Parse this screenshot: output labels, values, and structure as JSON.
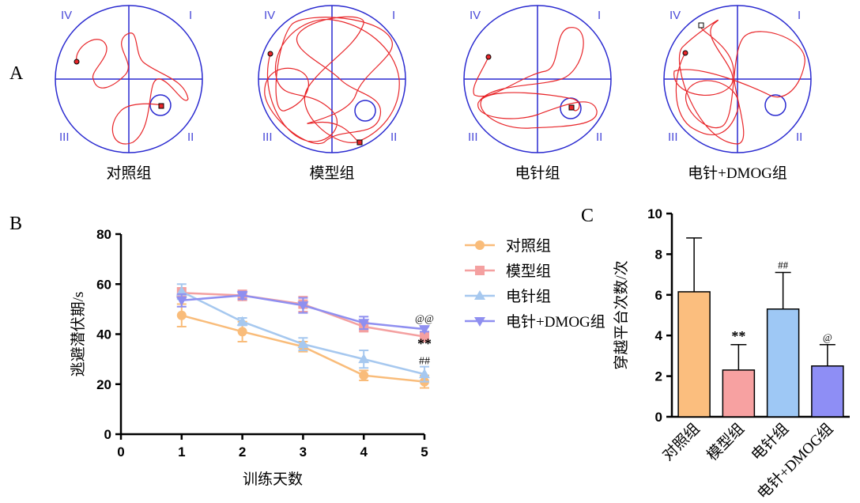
{
  "panel_labels": [
    "A",
    "B",
    "C"
  ],
  "panel_a": {
    "groups": [
      "对照组",
      "模型组",
      "电针组",
      "电针+DMOG组"
    ],
    "quadrants": [
      "I",
      "II",
      "III",
      "IV"
    ]
  },
  "chart_data": [
    {
      "type": "line",
      "x_label": "训练天数",
      "y_label": "逃避潜伏期/s",
      "x": [
        1,
        2,
        3,
        4,
        5
      ],
      "xlim": [
        0,
        5
      ],
      "xticks": [
        0,
        1,
        2,
        3,
        4,
        5
      ],
      "ylim": [
        0,
        80
      ],
      "yticks": [
        0,
        20,
        40,
        60,
        80
      ],
      "legend": "right",
      "annotations": [
        "@@",
        "**",
        "##"
      ],
      "series": [
        {
          "name": "对照组",
          "color": "#f9bc7a",
          "marker": "circle",
          "values": [
            47.5,
            41,
            35,
            23.5,
            21
          ],
          "errors": [
            4.5,
            4,
            2,
            2,
            2.5
          ]
        },
        {
          "name": "模型组",
          "color": "#f4a0a0",
          "marker": "square",
          "values": [
            56.5,
            55.5,
            52,
            43,
            39
          ],
          "errors": [
            2,
            2,
            3,
            2,
            2
          ]
        },
        {
          "name": "电针组",
          "color": "#a6c8ef",
          "marker": "triangle-up",
          "values": [
            57,
            45,
            36,
            30,
            24
          ],
          "errors": [
            3,
            1.5,
            2.5,
            3.5,
            3
          ]
        },
        {
          "name": "电针+DMOG组",
          "color": "#8f8ff0",
          "marker": "triangle-down",
          "values": [
            53.5,
            55.5,
            51.5,
            44.5,
            42
          ],
          "errors": [
            2.5,
            1.5,
            3,
            2.5,
            1
          ]
        }
      ]
    },
    {
      "type": "bar",
      "y_label": "穿越平台次数/次",
      "categories": [
        "对照组",
        "模型组",
        "电针组",
        "电针+DMOG组"
      ],
      "values": [
        6.15,
        2.3,
        5.3,
        2.5
      ],
      "errors": [
        2.65,
        1.25,
        1.8,
        1.05
      ],
      "colors": [
        "#fbbe7e",
        "#f7a1a1",
        "#9ec8f5",
        "#8e8ef5"
      ],
      "marks": [
        null,
        "**",
        "##",
        "@"
      ],
      "ylim": [
        0,
        10
      ],
      "yticks": [
        0,
        2,
        4,
        6,
        8,
        10
      ]
    }
  ]
}
